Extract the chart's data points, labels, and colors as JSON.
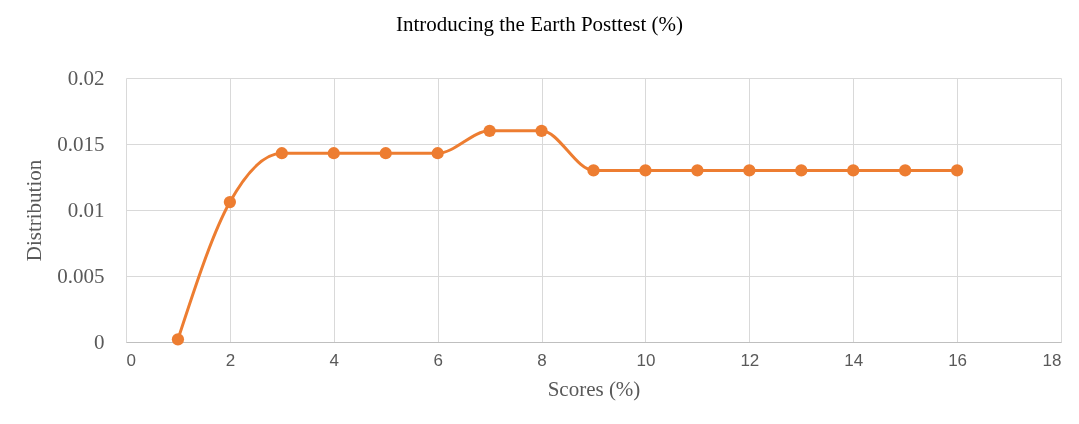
{
  "chart_data": {
    "type": "line",
    "title": "Introducing the Earth Posttest (%)",
    "xlabel": "Scores (%)",
    "ylabel": "Distribution",
    "x": [
      1,
      2,
      3,
      4,
      5,
      6,
      7,
      8,
      9,
      10,
      11,
      12,
      13,
      14,
      15,
      16
    ],
    "series": [
      {
        "color": "#ed7d31",
        "values": [
          0.0002,
          0.0106,
          0.0143,
          0.0143,
          0.0143,
          0.0143,
          0.016,
          0.016,
          0.013,
          0.013,
          0.013,
          0.013,
          0.013,
          0.013,
          0.013,
          0.013
        ]
      }
    ],
    "xlim": [
      0,
      18
    ],
    "xticks": [
      0,
      2,
      4,
      6,
      8,
      10,
      12,
      14,
      16,
      18
    ],
    "ylim": [
      0,
      0.02
    ],
    "yticks": [
      0,
      0.005,
      0.01,
      0.015,
      0.02
    ],
    "grid": true,
    "marker": "circle",
    "line_style": "solid"
  }
}
